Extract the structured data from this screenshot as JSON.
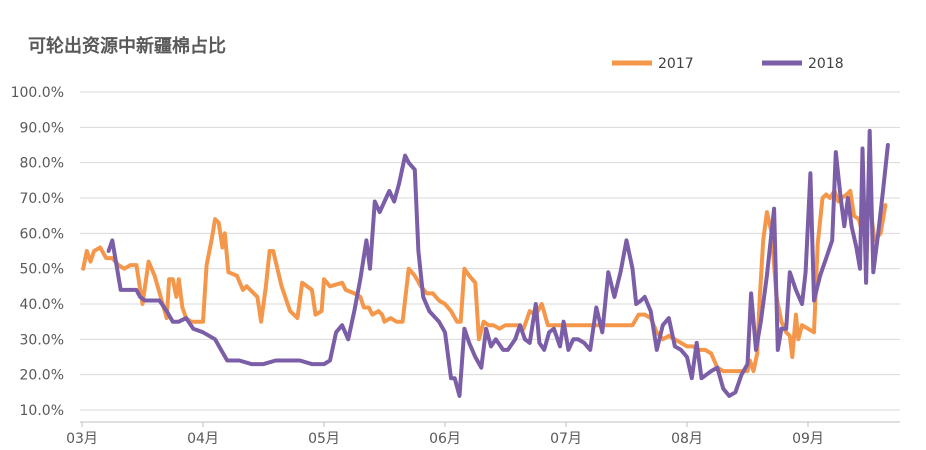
{
  "chart_data": {
    "type": "line",
    "title": "可轮出资源中新疆棉占比",
    "xlabel": "",
    "ylabel": "",
    "ylim": [
      0.1,
      1.0
    ],
    "y_ticks": [
      "100.0%",
      "90.0%",
      "80.0%",
      "70.0%",
      "60.0%",
      "50.0%",
      "40.0%",
      "30.0%",
      "20.0%",
      "10.0%"
    ],
    "x_ticks": [
      "03月",
      "04月",
      "05月",
      "06月",
      "07月",
      "08月",
      "09月"
    ],
    "x_tick_positions": [
      0,
      1,
      2,
      3,
      4,
      5,
      6
    ],
    "grid": true,
    "legend_position": "top-right",
    "series": [
      {
        "name": "2017",
        "color": "#f4974a",
        "points": [
          [
            0.01,
            0.5
          ],
          [
            0.04,
            0.55
          ],
          [
            0.07,
            0.52
          ],
          [
            0.1,
            0.55
          ],
          [
            0.15,
            0.56
          ],
          [
            0.2,
            0.53
          ],
          [
            0.25,
            0.53
          ],
          [
            0.3,
            0.51
          ],
          [
            0.35,
            0.5
          ],
          [
            0.4,
            0.51
          ],
          [
            0.45,
            0.51
          ],
          [
            0.5,
            0.4
          ],
          [
            0.55,
            0.52
          ],
          [
            0.6,
            0.48
          ],
          [
            0.65,
            0.42
          ],
          [
            0.7,
            0.36
          ],
          [
            0.72,
            0.47
          ],
          [
            0.75,
            0.47
          ],
          [
            0.78,
            0.42
          ],
          [
            0.8,
            0.47
          ],
          [
            0.83,
            0.39
          ],
          [
            0.86,
            0.36
          ],
          [
            0.9,
            0.35
          ],
          [
            0.95,
            0.35
          ],
          [
            1.0,
            0.35
          ],
          [
            1.03,
            0.51
          ],
          [
            1.07,
            0.58
          ],
          [
            1.1,
            0.64
          ],
          [
            1.13,
            0.63
          ],
          [
            1.16,
            0.56
          ],
          [
            1.18,
            0.6
          ],
          [
            1.21,
            0.49
          ],
          [
            1.28,
            0.48
          ],
          [
            1.33,
            0.44
          ],
          [
            1.36,
            0.45
          ],
          [
            1.45,
            0.42
          ],
          [
            1.48,
            0.35
          ],
          [
            1.52,
            0.45
          ],
          [
            1.55,
            0.55
          ],
          [
            1.58,
            0.55
          ],
          [
            1.65,
            0.45
          ],
          [
            1.72,
            0.38
          ],
          [
            1.78,
            0.36
          ],
          [
            1.82,
            0.46
          ],
          [
            1.9,
            0.44
          ],
          [
            1.93,
            0.37
          ],
          [
            1.98,
            0.38
          ],
          [
            2.0,
            0.47
          ],
          [
            2.05,
            0.45
          ],
          [
            2.15,
            0.46
          ],
          [
            2.18,
            0.44
          ],
          [
            2.25,
            0.43
          ],
          [
            2.3,
            0.42
          ],
          [
            2.33,
            0.39
          ],
          [
            2.37,
            0.39
          ],
          [
            2.4,
            0.37
          ],
          [
            2.45,
            0.38
          ],
          [
            2.48,
            0.37
          ],
          [
            2.5,
            0.35
          ],
          [
            2.55,
            0.36
          ],
          [
            2.6,
            0.35
          ],
          [
            2.65,
            0.35
          ],
          [
            2.7,
            0.5
          ],
          [
            2.75,
            0.48
          ],
          [
            2.8,
            0.45
          ],
          [
            2.85,
            0.43
          ],
          [
            2.9,
            0.43
          ],
          [
            2.95,
            0.41
          ],
          [
            3.0,
            0.4
          ],
          [
            3.05,
            0.38
          ],
          [
            3.1,
            0.35
          ],
          [
            3.13,
            0.35
          ],
          [
            3.16,
            0.5
          ],
          [
            3.2,
            0.48
          ],
          [
            3.25,
            0.46
          ],
          [
            3.28,
            0.3
          ],
          [
            3.32,
            0.35
          ],
          [
            3.36,
            0.34
          ],
          [
            3.4,
            0.34
          ],
          [
            3.45,
            0.33
          ],
          [
            3.5,
            0.34
          ],
          [
            3.55,
            0.34
          ],
          [
            3.6,
            0.34
          ],
          [
            3.65,
            0.33
          ],
          [
            3.7,
            0.38
          ],
          [
            3.75,
            0.37
          ],
          [
            3.8,
            0.4
          ],
          [
            3.85,
            0.34
          ],
          [
            3.9,
            0.34
          ],
          [
            3.95,
            0.34
          ],
          [
            4.0,
            0.34
          ],
          [
            4.05,
            0.34
          ],
          [
            4.1,
            0.34
          ],
          [
            4.15,
            0.34
          ],
          [
            4.2,
            0.34
          ],
          [
            4.25,
            0.34
          ],
          [
            4.3,
            0.34
          ],
          [
            4.35,
            0.34
          ],
          [
            4.4,
            0.34
          ],
          [
            4.45,
            0.34
          ],
          [
            4.5,
            0.34
          ],
          [
            4.55,
            0.34
          ],
          [
            4.6,
            0.37
          ],
          [
            4.65,
            0.37
          ],
          [
            4.7,
            0.36
          ],
          [
            4.75,
            0.32
          ],
          [
            4.8,
            0.3
          ],
          [
            4.85,
            0.31
          ],
          [
            4.9,
            0.3
          ],
          [
            4.95,
            0.29
          ],
          [
            5.0,
            0.28
          ],
          [
            5.05,
            0.28
          ],
          [
            5.1,
            0.27
          ],
          [
            5.15,
            0.27
          ],
          [
            5.2,
            0.26
          ],
          [
            5.25,
            0.22
          ],
          [
            5.3,
            0.21
          ],
          [
            5.35,
            0.21
          ],
          [
            5.4,
            0.21
          ],
          [
            5.45,
            0.21
          ],
          [
            5.5,
            0.21
          ],
          [
            5.52,
            0.24
          ],
          [
            5.55,
            0.21
          ],
          [
            5.58,
            0.26
          ],
          [
            5.6,
            0.41
          ],
          [
            5.63,
            0.58
          ],
          [
            5.66,
            0.66
          ],
          [
            5.7,
            0.6
          ],
          [
            5.74,
            0.42
          ],
          [
            5.78,
            0.35
          ],
          [
            5.82,
            0.32
          ],
          [
            5.85,
            0.31
          ],
          [
            5.87,
            0.25
          ],
          [
            5.9,
            0.37
          ],
          [
            5.92,
            0.3
          ],
          [
            5.95,
            0.34
          ],
          [
            6.0,
            0.33
          ],
          [
            6.05,
            0.32
          ],
          [
            6.08,
            0.57
          ],
          [
            6.12,
            0.7
          ],
          [
            6.15,
            0.71
          ],
          [
            6.18,
            0.7
          ],
          [
            6.22,
            0.72
          ],
          [
            6.25,
            0.69
          ],
          [
            6.28,
            0.7
          ],
          [
            6.32,
            0.71
          ],
          [
            6.35,
            0.72
          ],
          [
            6.38,
            0.65
          ],
          [
            6.42,
            0.64
          ],
          [
            6.45,
            0.6
          ],
          [
            6.48,
            0.65
          ],
          [
            6.52,
            0.66
          ],
          [
            6.55,
            0.58
          ],
          [
            6.6,
            0.6
          ],
          [
            6.64,
            0.68
          ]
        ]
      },
      {
        "name": "2018",
        "color": "#7b5ea7",
        "points": [
          [
            0.22,
            0.55
          ],
          [
            0.25,
            0.58
          ],
          [
            0.28,
            0.52
          ],
          [
            0.32,
            0.44
          ],
          [
            0.38,
            0.44
          ],
          [
            0.45,
            0.44
          ],
          [
            0.48,
            0.42
          ],
          [
            0.52,
            0.41
          ],
          [
            0.56,
            0.41
          ],
          [
            0.6,
            0.41
          ],
          [
            0.64,
            0.41
          ],
          [
            0.7,
            0.38
          ],
          [
            0.75,
            0.35
          ],
          [
            0.8,
            0.35
          ],
          [
            0.86,
            0.36
          ],
          [
            0.88,
            0.35
          ],
          [
            0.92,
            0.33
          ],
          [
            1.0,
            0.32
          ],
          [
            1.05,
            0.31
          ],
          [
            1.1,
            0.3
          ],
          [
            1.15,
            0.27
          ],
          [
            1.2,
            0.24
          ],
          [
            1.25,
            0.24
          ],
          [
            1.3,
            0.24
          ],
          [
            1.4,
            0.23
          ],
          [
            1.5,
            0.23
          ],
          [
            1.6,
            0.24
          ],
          [
            1.7,
            0.24
          ],
          [
            1.8,
            0.24
          ],
          [
            1.9,
            0.23
          ],
          [
            2.0,
            0.23
          ],
          [
            2.05,
            0.24
          ],
          [
            2.1,
            0.32
          ],
          [
            2.15,
            0.34
          ],
          [
            2.2,
            0.3
          ],
          [
            2.25,
            0.38
          ],
          [
            2.3,
            0.47
          ],
          [
            2.35,
            0.58
          ],
          [
            2.38,
            0.5
          ],
          [
            2.42,
            0.69
          ],
          [
            2.46,
            0.66
          ],
          [
            2.5,
            0.69
          ],
          [
            2.54,
            0.72
          ],
          [
            2.58,
            0.69
          ],
          [
            2.62,
            0.74
          ],
          [
            2.67,
            0.82
          ],
          [
            2.7,
            0.8
          ],
          [
            2.75,
            0.78
          ],
          [
            2.78,
            0.55
          ],
          [
            2.82,
            0.42
          ],
          [
            2.87,
            0.38
          ],
          [
            2.95,
            0.35
          ],
          [
            3.0,
            0.32
          ],
          [
            3.05,
            0.19
          ],
          [
            3.08,
            0.19
          ],
          [
            3.12,
            0.14
          ],
          [
            3.16,
            0.33
          ],
          [
            3.2,
            0.29
          ],
          [
            3.25,
            0.25
          ],
          [
            3.3,
            0.22
          ],
          [
            3.34,
            0.33
          ],
          [
            3.38,
            0.28
          ],
          [
            3.42,
            0.3
          ],
          [
            3.48,
            0.27
          ],
          [
            3.52,
            0.27
          ],
          [
            3.58,
            0.3
          ],
          [
            3.62,
            0.34
          ],
          [
            3.66,
            0.3
          ],
          [
            3.7,
            0.29
          ],
          [
            3.75,
            0.4
          ],
          [
            3.78,
            0.29
          ],
          [
            3.82,
            0.27
          ],
          [
            3.86,
            0.32
          ],
          [
            3.9,
            0.33
          ],
          [
            3.95,
            0.28
          ],
          [
            3.98,
            0.35
          ],
          [
            4.02,
            0.27
          ],
          [
            4.06,
            0.3
          ],
          [
            4.1,
            0.3
          ],
          [
            4.15,
            0.29
          ],
          [
            4.2,
            0.27
          ],
          [
            4.25,
            0.39
          ],
          [
            4.3,
            0.32
          ],
          [
            4.35,
            0.49
          ],
          [
            4.4,
            0.42
          ],
          [
            4.45,
            0.49
          ],
          [
            4.5,
            0.58
          ],
          [
            4.55,
            0.5
          ],
          [
            4.58,
            0.4
          ],
          [
            4.62,
            0.41
          ],
          [
            4.65,
            0.42
          ],
          [
            4.7,
            0.38
          ],
          [
            4.75,
            0.27
          ],
          [
            4.8,
            0.34
          ],
          [
            4.85,
            0.36
          ],
          [
            4.9,
            0.28
          ],
          [
            4.95,
            0.27
          ],
          [
            5.0,
            0.25
          ],
          [
            5.04,
            0.19
          ],
          [
            5.08,
            0.29
          ],
          [
            5.12,
            0.19
          ],
          [
            5.2,
            0.21
          ],
          [
            5.25,
            0.22
          ],
          [
            5.3,
            0.16
          ],
          [
            5.35,
            0.14
          ],
          [
            5.4,
            0.15
          ],
          [
            5.45,
            0.2
          ],
          [
            5.5,
            0.23
          ],
          [
            5.53,
            0.43
          ],
          [
            5.57,
            0.27
          ],
          [
            5.61,
            0.35
          ],
          [
            5.66,
            0.48
          ],
          [
            5.72,
            0.67
          ],
          [
            5.75,
            0.27
          ],
          [
            5.78,
            0.33
          ],
          [
            5.82,
            0.33
          ],
          [
            5.85,
            0.49
          ],
          [
            5.9,
            0.44
          ],
          [
            5.95,
            0.4
          ],
          [
            5.98,
            0.49
          ],
          [
            6.02,
            0.77
          ],
          [
            6.05,
            0.41
          ],
          [
            6.1,
            0.48
          ],
          [
            6.15,
            0.53
          ],
          [
            6.2,
            0.58
          ],
          [
            6.23,
            0.83
          ],
          [
            6.27,
            0.7
          ],
          [
            6.3,
            0.62
          ],
          [
            6.33,
            0.7
          ],
          [
            6.36,
            0.62
          ],
          [
            6.4,
            0.56
          ],
          [
            6.43,
            0.5
          ],
          [
            6.45,
            0.84
          ],
          [
            6.48,
            0.46
          ],
          [
            6.51,
            0.89
          ],
          [
            6.54,
            0.49
          ],
          [
            6.58,
            0.6
          ],
          [
            6.62,
            0.72
          ],
          [
            6.66,
            0.85
          ]
        ]
      }
    ]
  }
}
